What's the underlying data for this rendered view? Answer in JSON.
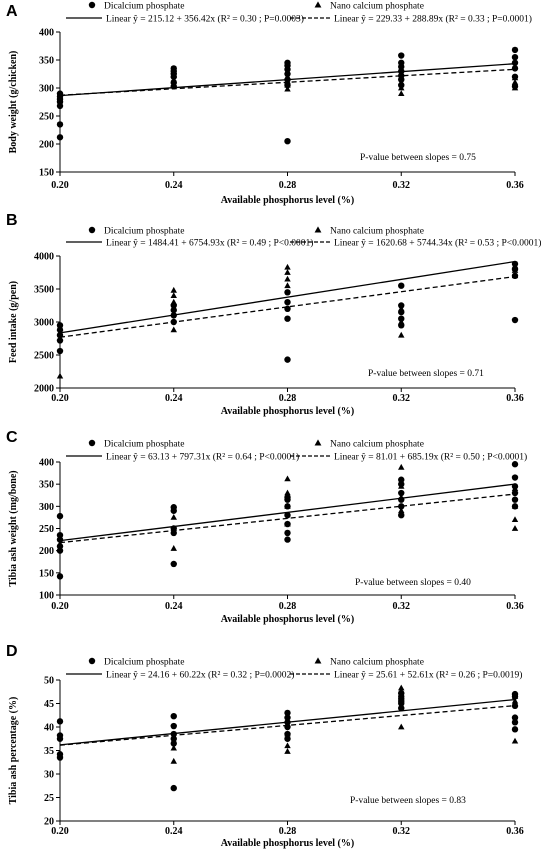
{
  "chart_data": [
    {
      "type": "scatter",
      "panel": "A",
      "xlabel": "Available phosphorus level (%)",
      "ylabel": "Body weight (g/chicken)",
      "x_ticks": [
        "0.20",
        "0.24",
        "0.28",
        "0.32",
        "0.36"
      ],
      "y_ticks": [
        "150",
        "200",
        "250",
        "300",
        "350",
        "400"
      ],
      "y_tick_labels": [
        "150",
        "200",
        "250",
        "300",
        "350",
        "400"
      ],
      "xlim": [
        0.2,
        0.36
      ],
      "ylim": [
        150,
        400
      ],
      "series": [
        {
          "name": "Dicalcium phosphate",
          "marker": "circle",
          "points": [
            [
              0.2,
              212
            ],
            [
              0.2,
              235
            ],
            [
              0.2,
              268
            ],
            [
              0.2,
              275
            ],
            [
              0.2,
              280
            ],
            [
              0.2,
              285
            ],
            [
              0.2,
              290
            ],
            [
              0.24,
              303
            ],
            [
              0.24,
              310
            ],
            [
              0.24,
              320
            ],
            [
              0.24,
              325
            ],
            [
              0.24,
              330
            ],
            [
              0.24,
              335
            ],
            [
              0.28,
              205
            ],
            [
              0.28,
              305
            ],
            [
              0.28,
              315
            ],
            [
              0.28,
              325
            ],
            [
              0.28,
              333
            ],
            [
              0.28,
              340
            ],
            [
              0.28,
              345
            ],
            [
              0.32,
              305
            ],
            [
              0.32,
              315
            ],
            [
              0.32,
              322
            ],
            [
              0.32,
              330
            ],
            [
              0.32,
              338
            ],
            [
              0.32,
              345
            ],
            [
              0.32,
              358
            ],
            [
              0.36,
              303
            ],
            [
              0.36,
              320
            ],
            [
              0.36,
              335
            ],
            [
              0.36,
              345
            ],
            [
              0.36,
              355
            ],
            [
              0.36,
              368
            ]
          ]
        },
        {
          "name": "Nano calcium phosphate",
          "marker": "triangle",
          "points": [
            [
              0.2,
              272
            ],
            [
              0.2,
              280
            ],
            [
              0.2,
              288
            ],
            [
              0.24,
              312
            ],
            [
              0.24,
              322
            ],
            [
              0.24,
              330
            ],
            [
              0.28,
              298
            ],
            [
              0.28,
              305
            ],
            [
              0.28,
              312
            ],
            [
              0.28,
              320
            ],
            [
              0.32,
              290
            ],
            [
              0.32,
              300
            ],
            [
              0.32,
              310
            ],
            [
              0.32,
              320
            ],
            [
              0.36,
              300
            ],
            [
              0.36,
              310
            ],
            [
              0.36,
              318
            ]
          ]
        }
      ],
      "fits": [
        {
          "label": "Linear ŷ = 215.12 + 356.42x (R² = 0.30 ; P=0.0003)",
          "intercept": 215.12,
          "slope": 356.42,
          "style": "solid"
        },
        {
          "label": "Linear ŷ = 229.33 + 288.89x (R² = 0.33 ; P=0.0001)",
          "intercept": 229.33,
          "slope": 288.89,
          "style": "dashed"
        }
      ],
      "annotation": "P-value between slopes = 0.75"
    },
    {
      "type": "scatter",
      "panel": "B",
      "xlabel": "Available phosphorus level (%)",
      "ylabel": "Feed intake (g/pen)",
      "x_ticks": [
        "0.20",
        "0.24",
        "0.28",
        "0.32",
        "0.36"
      ],
      "y_ticks": [
        "2000",
        "2500",
        "3000",
        "3500",
        "4000"
      ],
      "y_tick_labels": [
        "2000",
        "2500",
        "3000",
        "3500",
        "4000"
      ],
      "xlim": [
        0.2,
        0.36
      ],
      "ylim": [
        2000,
        4000
      ],
      "series": [
        {
          "name": "Dicalcium phosphate",
          "marker": "circle",
          "points": [
            [
              0.2,
              2560
            ],
            [
              0.2,
              2720
            ],
            [
              0.2,
              2800
            ],
            [
              0.2,
              2880
            ],
            [
              0.2,
              2950
            ],
            [
              0.24,
              3000
            ],
            [
              0.24,
              3100
            ],
            [
              0.24,
              3180
            ],
            [
              0.24,
              3250
            ],
            [
              0.28,
              2430
            ],
            [
              0.28,
              3050
            ],
            [
              0.28,
              3200
            ],
            [
              0.28,
              3300
            ],
            [
              0.28,
              3450
            ],
            [
              0.32,
              2950
            ],
            [
              0.32,
              3050
            ],
            [
              0.32,
              3150
            ],
            [
              0.32,
              3250
            ],
            [
              0.32,
              3550
            ],
            [
              0.36,
              3030
            ],
            [
              0.36,
              3700
            ],
            [
              0.36,
              3800
            ],
            [
              0.36,
              3880
            ]
          ]
        },
        {
          "name": "Nano calcium phosphate",
          "marker": "triangle",
          "points": [
            [
              0.2,
              2180
            ],
            [
              0.2,
              2750
            ],
            [
              0.2,
              2900
            ],
            [
              0.24,
              2880
            ],
            [
              0.24,
              3300
            ],
            [
              0.24,
              3400
            ],
            [
              0.24,
              3480
            ],
            [
              0.28,
              3550
            ],
            [
              0.28,
              3650
            ],
            [
              0.28,
              3750
            ],
            [
              0.28,
              3830
            ],
            [
              0.32,
              2800
            ],
            [
              0.32,
              3000
            ],
            [
              0.32,
              3200
            ],
            [
              0.36,
              3700
            ],
            [
              0.36,
              3780
            ],
            [
              0.36,
              3850
            ]
          ]
        }
      ],
      "fits": [
        {
          "label": "Linear ŷ = 1484.41 + 6754.93x  (R² = 0.49 ; P<0.0001)",
          "intercept": 1484.41,
          "slope": 6754.93,
          "style": "solid"
        },
        {
          "label": "Linear ŷ = 1620.68 + 5744.34x  (R² = 0.53 ; P<0.0001)",
          "intercept": 1620.68,
          "slope": 5744.34,
          "style": "dashed"
        }
      ],
      "annotation": "P-value between slopes = 0.71"
    },
    {
      "type": "scatter",
      "panel": "C",
      "xlabel": "Available phosphorus level (%)",
      "ylabel": "Tibia ash weight (mg/bone)",
      "x_ticks": [
        "0.20",
        "0.24",
        "0.28",
        "0.32",
        "0.36"
      ],
      "y_ticks": [
        "100",
        "150",
        "200",
        "250",
        "300",
        "350",
        "400"
      ],
      "y_tick_labels": [
        "100",
        "150",
        "200",
        "250",
        "300",
        "350",
        "400"
      ],
      "xlim": [
        0.2,
        0.36
      ],
      "ylim": [
        100,
        400
      ],
      "series": [
        {
          "name": "Dicalcium phosphate",
          "marker": "circle",
          "points": [
            [
              0.2,
              142
            ],
            [
              0.2,
              200
            ],
            [
              0.2,
              210
            ],
            [
              0.2,
              225
            ],
            [
              0.2,
              235
            ],
            [
              0.2,
              278
            ],
            [
              0.24,
              170
            ],
            [
              0.24,
              240
            ],
            [
              0.24,
              250
            ],
            [
              0.24,
              290
            ],
            [
              0.24,
              298
            ],
            [
              0.28,
              225
            ],
            [
              0.28,
              240
            ],
            [
              0.28,
              260
            ],
            [
              0.28,
              280
            ],
            [
              0.28,
              300
            ],
            [
              0.28,
              315
            ],
            [
              0.28,
              320
            ],
            [
              0.32,
              280
            ],
            [
              0.32,
              300
            ],
            [
              0.32,
              315
            ],
            [
              0.32,
              330
            ],
            [
              0.32,
              350
            ],
            [
              0.32,
              360
            ],
            [
              0.36,
              300
            ],
            [
              0.36,
              315
            ],
            [
              0.36,
              330
            ],
            [
              0.36,
              345
            ],
            [
              0.36,
              365
            ],
            [
              0.36,
              395
            ]
          ]
        },
        {
          "name": "Nano calcium phosphate",
          "marker": "triangle",
          "points": [
            [
              0.2,
              205
            ],
            [
              0.2,
              215
            ],
            [
              0.24,
              205
            ],
            [
              0.24,
              250
            ],
            [
              0.24,
              275
            ],
            [
              0.28,
              260
            ],
            [
              0.28,
              300
            ],
            [
              0.28,
              330
            ],
            [
              0.28,
              362
            ],
            [
              0.32,
              290
            ],
            [
              0.32,
              320
            ],
            [
              0.32,
              345
            ],
            [
              0.32,
              388
            ],
            [
              0.36,
              250
            ],
            [
              0.36,
              270
            ],
            [
              0.36,
              300
            ],
            [
              0.36,
              340
            ]
          ]
        }
      ],
      "fits": [
        {
          "label": "Linear ŷ = 63.13 + 797.31x  (R² = 0.64 ; P<0.0001)",
          "intercept": 63.13,
          "slope": 797.31,
          "style": "solid"
        },
        {
          "label": "Linear ŷ = 81.01 + 685.19x  (R² = 0.50 ; P<0.0001)",
          "intercept": 81.01,
          "slope": 685.19,
          "style": "dashed"
        }
      ],
      "annotation": "P-value between slopes = 0.40"
    },
    {
      "type": "scatter",
      "panel": "D",
      "xlabel": "Available phosphorus level (%)",
      "ylabel": "Tibia ash percentage (%)",
      "x_ticks": [
        "0.20",
        "0.24",
        "0.28",
        "0.32",
        "0.36"
      ],
      "y_ticks": [
        "20",
        "25",
        "30",
        "35",
        "40",
        "45",
        "50"
      ],
      "y_tick_labels": [
        "20",
        "25",
        "30",
        "35",
        "40",
        "45",
        "50"
      ],
      "xlim": [
        0.2,
        0.36
      ],
      "ylim": [
        20,
        50
      ],
      "series": [
        {
          "name": "Dicalcium phosphate",
          "marker": "circle",
          "points": [
            [
              0.2,
              33.5
            ],
            [
              0.2,
              34.2
            ],
            [
              0.2,
              37.5
            ],
            [
              0.2,
              38.2
            ],
            [
              0.2,
              41.2
            ],
            [
              0.24,
              27.0
            ],
            [
              0.24,
              36.5
            ],
            [
              0.24,
              37.5
            ],
            [
              0.24,
              38.5
            ],
            [
              0.24,
              40.2
            ],
            [
              0.24,
              42.3
            ],
            [
              0.28,
              37.5
            ],
            [
              0.28,
              38.5
            ],
            [
              0.28,
              40.0
            ],
            [
              0.28,
              41.0
            ],
            [
              0.28,
              42.0
            ],
            [
              0.28,
              43.0
            ],
            [
              0.32,
              44.0
            ],
            [
              0.32,
              45.0
            ],
            [
              0.32,
              45.5
            ],
            [
              0.32,
              46.0
            ],
            [
              0.32,
              46.5
            ],
            [
              0.32,
              47.2
            ],
            [
              0.36,
              39.5
            ],
            [
              0.36,
              41.0
            ],
            [
              0.36,
              42.0
            ],
            [
              0.36,
              44.5
            ],
            [
              0.36,
              46.5
            ],
            [
              0.36,
              47.0
            ]
          ]
        },
        {
          "name": "Nano calcium phosphate",
          "marker": "triangle",
          "points": [
            [
              0.2,
              33.8
            ],
            [
              0.24,
              32.7
            ],
            [
              0.24,
              35.5
            ],
            [
              0.28,
              34.8
            ],
            [
              0.28,
              36.0
            ],
            [
              0.28,
              38.5
            ],
            [
              0.32,
              40.0
            ],
            [
              0.32,
              44.5
            ],
            [
              0.32,
              47.5
            ],
            [
              0.32,
              48.3
            ],
            [
              0.36,
              37.0
            ],
            [
              0.36,
              45.5
            ],
            [
              0.36,
              46.5
            ]
          ]
        }
      ],
      "fits": [
        {
          "label": "Linear ŷ = 24.16 + 60.22x  (R² = 0.32 ; P=0.0002)",
          "intercept": 24.16,
          "slope": 60.22,
          "style": "solid"
        },
        {
          "label": "Linear ŷ = 25.61 + 52.61x  (R² = 0.26 ; P=0.0019)",
          "intercept": 25.61,
          "slope": 52.61,
          "style": "dashed"
        }
      ],
      "annotation": "P-value between slopes = 0.83"
    }
  ]
}
